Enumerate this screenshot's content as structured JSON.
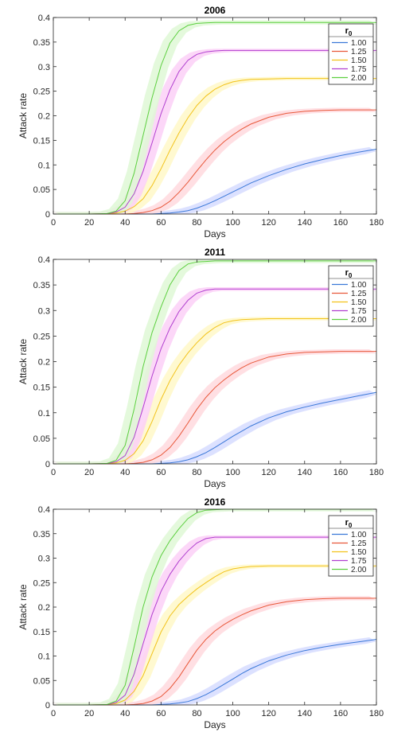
{
  "figure": {
    "legend_title_main": "r",
    "legend_title_sub": "0"
  },
  "colors": {
    "1.00": "#3a78d8",
    "1.25": "#e8583a",
    "1.50": "#f2c21a",
    "1.75": "#b13fcf",
    "2.00": "#5ccf3f",
    "band_1.00": "#d6dcff",
    "band_1.25": "#ffd9de",
    "band_1.50": "#fff8c8",
    "band_1.75": "#fbd0f7",
    "band_2.00": "#dff8d6"
  },
  "chart_data": [
    {
      "type": "line",
      "title": "2006",
      "xlabel": "Days",
      "ylabel": "Attack rate",
      "xlim": [
        0,
        180
      ],
      "ylim": [
        0,
        0.4
      ],
      "xticks": [
        0,
        20,
        40,
        60,
        80,
        100,
        120,
        140,
        160,
        180
      ],
      "yticks": [
        0,
        0.05,
        0.1,
        0.15,
        0.2,
        0.25,
        0.3,
        0.35,
        0.4
      ],
      "x": [
        0,
        10,
        20,
        30,
        35,
        40,
        45,
        50,
        55,
        60,
        65,
        70,
        75,
        80,
        85,
        90,
        95,
        100,
        105,
        110,
        120,
        130,
        140,
        150,
        160,
        170,
        180
      ],
      "legend_position": "top-right",
      "series": [
        {
          "name": "1.00",
          "values": [
            0,
            0,
            0,
            0,
            0,
            0,
            0,
            0,
            0,
            0.001,
            0.002,
            0.004,
            0.007,
            0.012,
            0.019,
            0.027,
            0.036,
            0.045,
            0.054,
            0.063,
            0.078,
            0.091,
            0.102,
            0.111,
            0.119,
            0.126,
            0.132
          ],
          "band": 0.012
        },
        {
          "name": "1.25",
          "values": [
            0,
            0,
            0,
            0,
            0,
            0,
            0.001,
            0.003,
            0.007,
            0.014,
            0.026,
            0.044,
            0.065,
            0.088,
            0.11,
            0.13,
            0.147,
            0.161,
            0.173,
            0.183,
            0.197,
            0.205,
            0.209,
            0.211,
            0.212,
            0.212,
            0.212
          ],
          "band": 0.012
        },
        {
          "name": "1.50",
          "values": [
            0,
            0,
            0,
            0.001,
            0.002,
            0.006,
            0.015,
            0.031,
            0.058,
            0.092,
            0.13,
            0.165,
            0.196,
            0.221,
            0.24,
            0.254,
            0.263,
            0.269,
            0.272,
            0.274,
            0.275,
            0.276,
            0.276,
            0.276,
            0.276,
            0.276,
            0.276
          ],
          "band": 0.01
        },
        {
          "name": "1.75",
          "values": [
            0,
            0,
            0,
            0.001,
            0.004,
            0.014,
            0.041,
            0.087,
            0.145,
            0.204,
            0.253,
            0.29,
            0.313,
            0.325,
            0.33,
            0.332,
            0.333,
            0.333,
            0.333,
            0.333,
            0.333,
            0.333,
            0.333,
            0.333,
            0.333,
            0.333,
            0.333
          ],
          "band": 0.01
        },
        {
          "name": "2.00",
          "values": [
            0,
            0,
            0,
            0.001,
            0.006,
            0.027,
            0.083,
            0.16,
            0.237,
            0.302,
            0.348,
            0.373,
            0.384,
            0.388,
            0.389,
            0.39,
            0.39,
            0.39,
            0.39,
            0.39,
            0.39,
            0.39,
            0.39,
            0.39,
            0.39,
            0.39,
            0.39
          ],
          "band": 0.012
        }
      ]
    },
    {
      "type": "line",
      "title": "2011",
      "xlabel": "Days",
      "ylabel": "Attack rate",
      "xlim": [
        0,
        180
      ],
      "ylim": [
        0,
        0.4
      ],
      "xticks": [
        0,
        20,
        40,
        60,
        80,
        100,
        120,
        140,
        160,
        180
      ],
      "yticks": [
        0,
        0.05,
        0.1,
        0.15,
        0.2,
        0.25,
        0.3,
        0.35,
        0.4
      ],
      "x": [
        0,
        10,
        20,
        30,
        35,
        40,
        45,
        50,
        55,
        60,
        65,
        70,
        75,
        80,
        85,
        90,
        95,
        100,
        105,
        110,
        120,
        130,
        140,
        150,
        160,
        170,
        180
      ],
      "legend_position": "top-right",
      "series": [
        {
          "name": "1.00",
          "values": [
            0,
            0,
            0,
            0,
            0,
            0,
            0,
            0,
            0,
            0.001,
            0.002,
            0.004,
            0.008,
            0.014,
            0.022,
            0.032,
            0.043,
            0.054,
            0.064,
            0.074,
            0.09,
            0.102,
            0.111,
            0.119,
            0.126,
            0.133,
            0.14
          ],
          "band": 0.012
        },
        {
          "name": "1.25",
          "values": [
            0,
            0,
            0,
            0,
            0,
            0,
            0.001,
            0.003,
            0.008,
            0.017,
            0.032,
            0.054,
            0.08,
            0.107,
            0.13,
            0.149,
            0.164,
            0.177,
            0.188,
            0.197,
            0.209,
            0.215,
            0.218,
            0.219,
            0.22,
            0.22,
            0.22
          ],
          "band": 0.012
        },
        {
          "name": "1.50",
          "values": [
            0,
            0,
            0,
            0.001,
            0.002,
            0.007,
            0.02,
            0.045,
            0.083,
            0.126,
            0.163,
            0.193,
            0.217,
            0.237,
            0.254,
            0.267,
            0.276,
            0.28,
            0.282,
            0.283,
            0.284,
            0.284,
            0.284,
            0.284,
            0.284,
            0.284,
            0.284
          ],
          "band": 0.01
        },
        {
          "name": "1.75",
          "values": [
            0,
            0,
            0,
            0.001,
            0.004,
            0.016,
            0.052,
            0.11,
            0.172,
            0.225,
            0.266,
            0.298,
            0.32,
            0.334,
            0.34,
            0.342,
            0.342,
            0.342,
            0.342,
            0.342,
            0.342,
            0.342,
            0.342,
            0.342,
            0.342,
            0.342,
            0.342
          ],
          "band": 0.01
        },
        {
          "name": "2.00",
          "values": [
            0,
            0,
            0,
            0.001,
            0.007,
            0.036,
            0.107,
            0.19,
            0.257,
            0.307,
            0.35,
            0.378,
            0.391,
            0.395,
            0.396,
            0.397,
            0.397,
            0.397,
            0.397,
            0.397,
            0.397,
            0.397,
            0.397,
            0.397,
            0.397,
            0.397,
            0.397
          ],
          "band": 0.012
        }
      ]
    },
    {
      "type": "line",
      "title": "2016",
      "xlabel": "Days",
      "ylabel": "Attack rate",
      "xlim": [
        0,
        180
      ],
      "ylim": [
        0,
        0.4
      ],
      "xticks": [
        0,
        20,
        40,
        60,
        80,
        100,
        120,
        140,
        160,
        180
      ],
      "yticks": [
        0,
        0.05,
        0.1,
        0.15,
        0.2,
        0.25,
        0.3,
        0.35,
        0.4
      ],
      "x": [
        0,
        10,
        20,
        30,
        35,
        40,
        45,
        50,
        55,
        60,
        65,
        70,
        75,
        80,
        85,
        90,
        95,
        100,
        105,
        110,
        120,
        130,
        140,
        150,
        160,
        170,
        180
      ],
      "legend_position": "top-right",
      "series": [
        {
          "name": "1.00",
          "values": [
            0,
            0,
            0,
            0,
            0,
            0,
            0,
            0,
            0,
            0.001,
            0.002,
            0.004,
            0.007,
            0.013,
            0.021,
            0.031,
            0.042,
            0.053,
            0.064,
            0.074,
            0.09,
            0.102,
            0.111,
            0.118,
            0.124,
            0.129,
            0.134
          ],
          "band": 0.012
        },
        {
          "name": "1.25",
          "values": [
            0,
            0,
            0,
            0,
            0,
            0,
            0.001,
            0.003,
            0.008,
            0.017,
            0.034,
            0.057,
            0.085,
            0.112,
            0.134,
            0.151,
            0.164,
            0.175,
            0.184,
            0.192,
            0.204,
            0.211,
            0.215,
            0.217,
            0.218,
            0.218,
            0.218
          ],
          "band": 0.012
        },
        {
          "name": "1.50",
          "values": [
            0,
            0,
            0,
            0.001,
            0.003,
            0.01,
            0.028,
            0.06,
            0.105,
            0.149,
            0.182,
            0.205,
            0.222,
            0.237,
            0.25,
            0.262,
            0.272,
            0.278,
            0.281,
            0.283,
            0.284,
            0.284,
            0.284,
            0.284,
            0.284,
            0.284,
            0.284
          ],
          "band": 0.01
        },
        {
          "name": "1.75",
          "values": [
            0,
            0,
            0,
            0.001,
            0.005,
            0.02,
            0.063,
            0.125,
            0.185,
            0.232,
            0.267,
            0.294,
            0.315,
            0.331,
            0.34,
            0.343,
            0.343,
            0.343,
            0.343,
            0.343,
            0.343,
            0.343,
            0.343,
            0.343,
            0.343,
            0.343,
            0.343
          ],
          "band": 0.01
        },
        {
          "name": "2.00",
          "values": [
            0,
            0,
            0,
            0.001,
            0.008,
            0.04,
            0.118,
            0.2,
            0.262,
            0.305,
            0.336,
            0.36,
            0.381,
            0.393,
            0.398,
            0.399,
            0.4,
            0.4,
            0.4,
            0.4,
            0.4,
            0.4,
            0.4,
            0.4,
            0.4,
            0.4,
            0.4
          ],
          "band": 0.012
        }
      ]
    }
  ]
}
